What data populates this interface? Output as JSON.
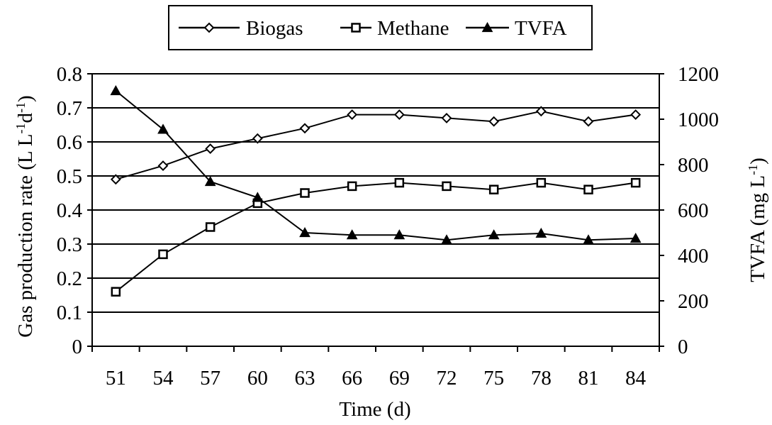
{
  "chart_data": {
    "type": "line",
    "title": "",
    "xlabel": "Time (d)",
    "ylabel_left": {
      "main": "Gas production rate  (L L",
      "sup1": "-1",
      "mid": "d",
      "sup2": "-1",
      "end": ")"
    },
    "ylabel_right": {
      "main": "TVFA (mg  L",
      "sup": "-1",
      "end": ")"
    },
    "categories": [
      "51",
      "54",
      "57",
      "60",
      "63",
      "66",
      "69",
      "72",
      "75",
      "78",
      "81",
      "84"
    ],
    "x": [
      51,
      54,
      57,
      60,
      63,
      66,
      69,
      72,
      75,
      78,
      81,
      84
    ],
    "left_axis": {
      "ylim": [
        0,
        0.8
      ],
      "ticks": [
        "0",
        "0.1",
        "0.2",
        "0.3",
        "0.4",
        "0.5",
        "0.6",
        "0.7",
        "0.8"
      ]
    },
    "right_axis": {
      "ylim": [
        0,
        1200
      ],
      "ticks": [
        "0",
        "200",
        "400",
        "600",
        "800",
        "1000",
        "1200"
      ]
    },
    "grid": "horizontal",
    "legend_position": "top-center",
    "series": [
      {
        "name": "Biogas",
        "axis": "left",
        "marker": "diamond-open",
        "color": "#000000",
        "values": [
          0.49,
          0.53,
          0.58,
          0.61,
          0.64,
          0.68,
          0.68,
          0.67,
          0.66,
          0.69,
          0.66,
          0.68
        ]
      },
      {
        "name": "Methane",
        "axis": "left",
        "marker": "square-open",
        "color": "#000000",
        "values": [
          0.16,
          0.27,
          0.35,
          0.42,
          0.45,
          0.47,
          0.48,
          0.47,
          0.46,
          0.48,
          0.46,
          0.48
        ]
      },
      {
        "name": "TVFA",
        "axis": "right",
        "marker": "triangle-filled",
        "color": "#000000",
        "values": [
          1125,
          955,
          725,
          655,
          500,
          490,
          490,
          468,
          490,
          497,
          468,
          475
        ]
      }
    ]
  }
}
